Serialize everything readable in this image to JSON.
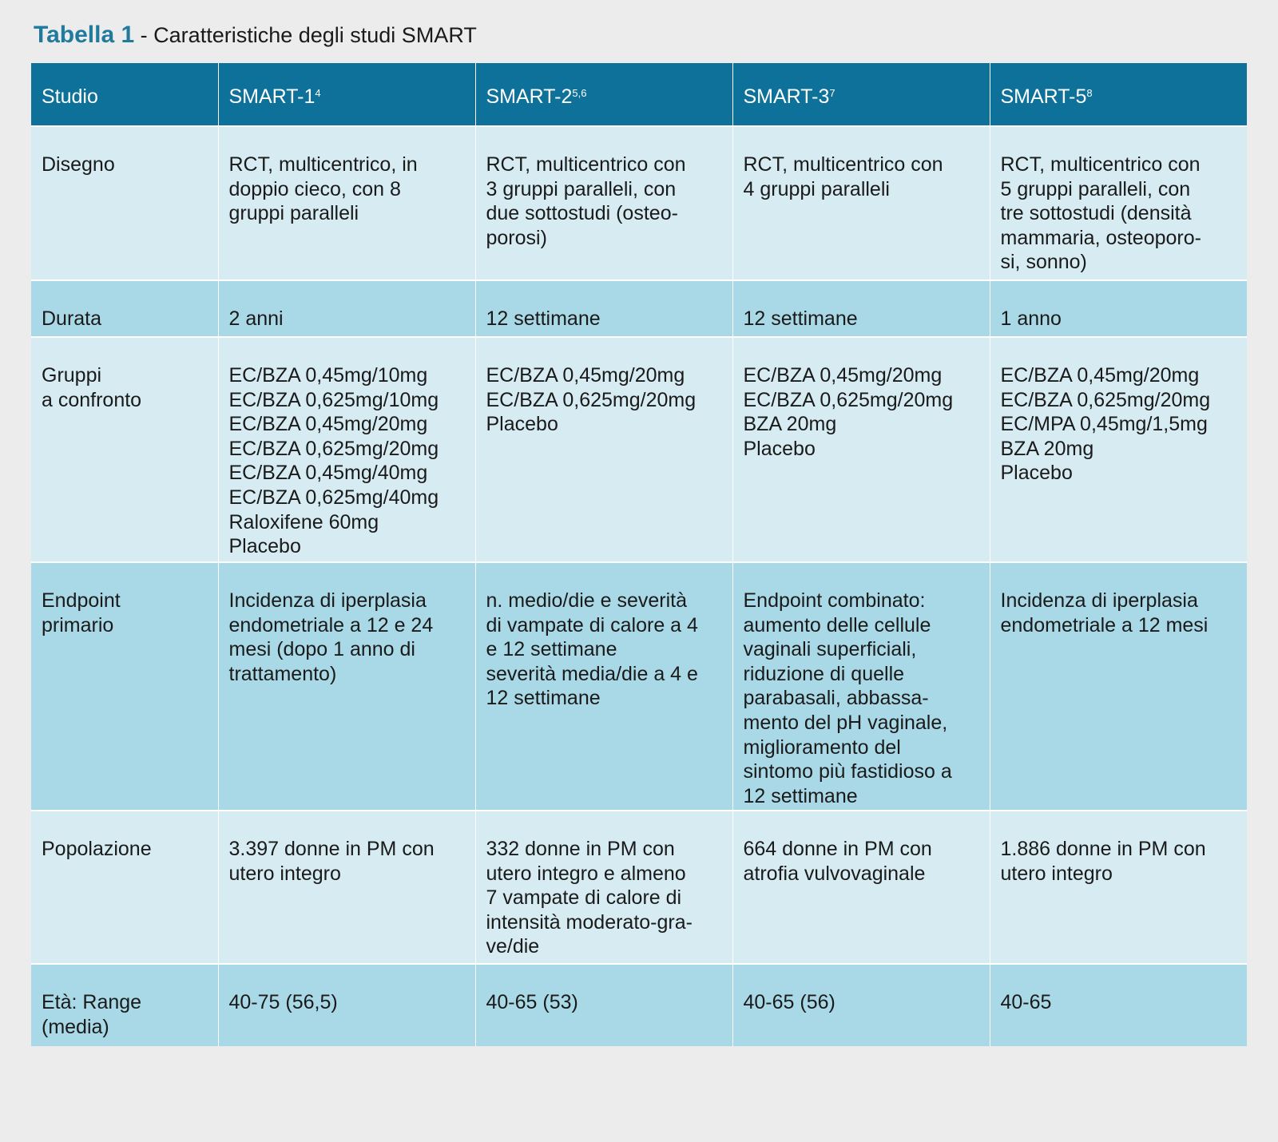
{
  "title": {
    "bold": "Tabella 1",
    "rest": " - Caratteristiche degli studi SMART"
  },
  "header": {
    "col0": "Studio",
    "col1": "SMART-1",
    "col1_sup": "4",
    "col2": "SMART-2",
    "col2_sup": "5,6",
    "col3": "SMART-3",
    "col3_sup": "7",
    "col4": "SMART-5",
    "col4_sup": "8"
  },
  "rows": [
    {
      "label": [
        "Disegno"
      ],
      "cells": [
        [
          "RCT, multicentrico, in",
          "doppio cieco, con 8",
          "gruppi paralleli"
        ],
        [
          "RCT, multicentrico con",
          "3 gruppi paralleli, con",
          "due sottostudi (osteo-",
          "porosi)"
        ],
        [
          "RCT, multicentrico con",
          "4 gruppi paralleli"
        ],
        [
          "RCT, multicentrico con",
          "5 gruppi paralleli, con",
          "tre sottostudi (densità",
          "mammaria, osteoporo-",
          "si, sonno)"
        ]
      ]
    },
    {
      "label": [
        "Durata"
      ],
      "cells": [
        [
          "2 anni"
        ],
        [
          "12 settimane"
        ],
        [
          "12 settimane"
        ],
        [
          "1 anno"
        ]
      ]
    },
    {
      "label": [
        "Gruppi",
        "a confronto"
      ],
      "cells": [
        [
          "EC/BZA 0,45mg/10mg",
          "EC/BZA 0,625mg/10mg",
          "EC/BZA 0,45mg/20mg",
          "EC/BZA 0,625mg/20mg",
          "EC/BZA 0,45mg/40mg",
          "EC/BZA 0,625mg/40mg",
          "Raloxifene 60mg",
          "Placebo"
        ],
        [
          "EC/BZA 0,45mg/20mg",
          "EC/BZA 0,625mg/20mg",
          "Placebo"
        ],
        [
          "EC/BZA 0,45mg/20mg",
          "EC/BZA 0,625mg/20mg",
          "BZA 20mg",
          "Placebo"
        ],
        [
          "EC/BZA 0,45mg/20mg",
          "EC/BZA 0,625mg/20mg",
          "EC/MPA 0,45mg/1,5mg",
          "BZA 20mg",
          "Placebo"
        ]
      ]
    },
    {
      "label": [
        "Endpoint",
        "primario"
      ],
      "cells": [
        [
          "Incidenza di iperplasia",
          "endometriale a 12 e 24",
          "mesi (dopo 1 anno di",
          "trattamento)"
        ],
        [
          "n. medio/die e severità",
          "di vampate di calore a 4",
          "e 12 settimane",
          "severità media/die a 4 e",
          "12 settimane"
        ],
        [
          "Endpoint combinato:",
          "aumento delle cellule",
          "vaginali superficiali,",
          "riduzione di quelle",
          "parabasali, abbassa-",
          "mento del pH vaginale,",
          "miglioramento del",
          "sintomo più fastidioso a",
          "12 settimane"
        ],
        [
          "Incidenza di iperplasia",
          "endometriale a 12 mesi"
        ]
      ]
    },
    {
      "label": [
        "Popolazione"
      ],
      "cells": [
        [
          "3.397 donne in PM con",
          "utero integro"
        ],
        [
          "332 donne in PM con",
          "utero integro e almeno",
          "7 vampate di calore di",
          "intensità moderato-gra-",
          "ve/die"
        ],
        [
          "664 donne in PM con",
          "atrofia vulvovaginale"
        ],
        [
          "1.886 donne in PM con",
          "utero integro"
        ]
      ]
    },
    {
      "label": [
        "Età: Range",
        "(media)"
      ],
      "cells": [
        [
          "40-75 (56,5)"
        ],
        [
          "40-65 (53)"
        ],
        [
          "40-65 (56)"
        ],
        [
          "40-65"
        ]
      ]
    }
  ]
}
